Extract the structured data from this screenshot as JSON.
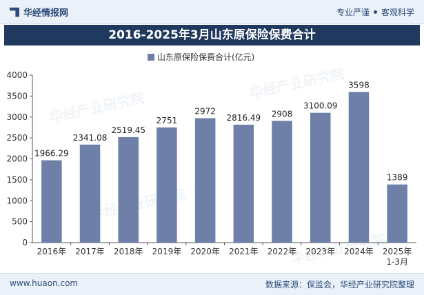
{
  "header": {
    "brand": "华经情报网",
    "tagline_left": "专业严谨",
    "tagline_right": "客观科学"
  },
  "footer": {
    "website": "www.huaon.com",
    "source": "数据来源：保监会，华经产业研究院整理"
  },
  "watermark": "华经产业研究院",
  "colors": {
    "bar": "#6e7fa8",
    "title_bg": "#20395f",
    "header_bg": "#eaf1f9"
  },
  "chart_data": {
    "type": "bar",
    "title": "2016-2025年3月山东原保险保费合计",
    "legend": "山东原保险保费合计(亿元)",
    "legend_position": "top-center",
    "categories": [
      "2016年",
      "2017年",
      "2018年",
      "2019年",
      "2020年",
      "2021年",
      "2022年",
      "2023年",
      "2024年",
      "2025年\n1-3月"
    ],
    "values": [
      1966.29,
      2341.08,
      2519.45,
      2751,
      2972,
      2816.49,
      2908,
      3100.09,
      3598,
      1389
    ],
    "value_labels": [
      "1966.29",
      "2341.08",
      "2519.45",
      "2751",
      "2972",
      "2816.49",
      "2908",
      "3100.09",
      "3598",
      "1389"
    ],
    "ylim": [
      0,
      4000
    ],
    "yticks": [
      0,
      500,
      1000,
      1500,
      2000,
      2500,
      3000,
      3500,
      4000
    ],
    "grid": false
  }
}
